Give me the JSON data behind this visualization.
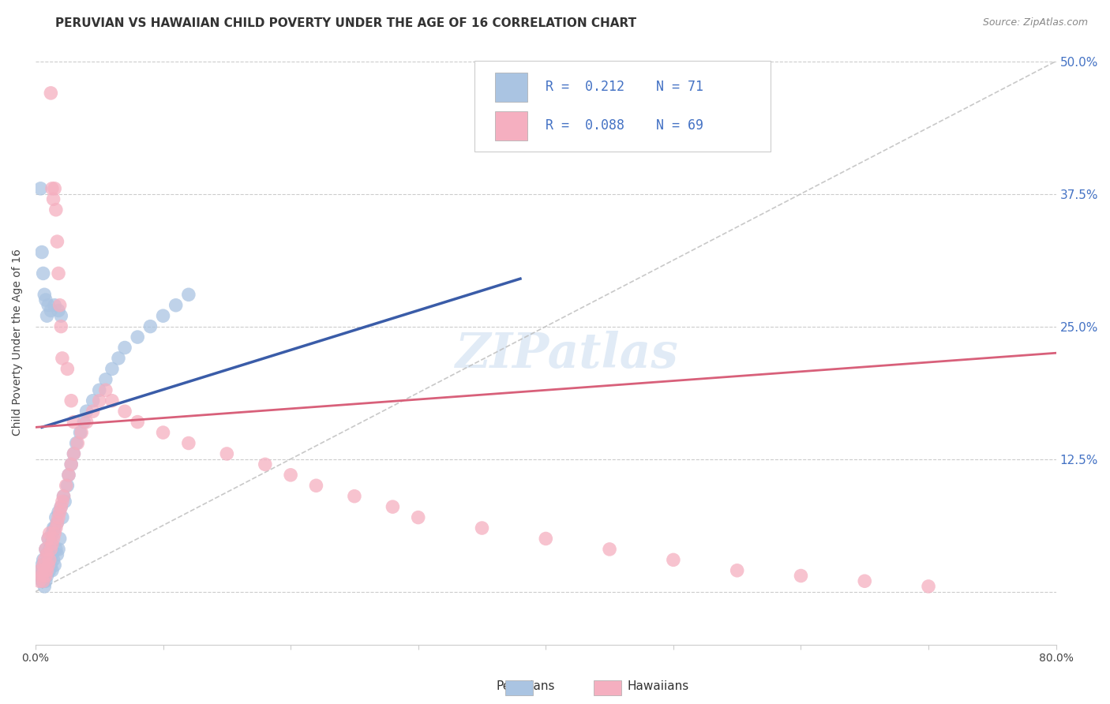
{
  "title": "PERUVIAN VS HAWAIIAN CHILD POVERTY UNDER THE AGE OF 16 CORRELATION CHART",
  "source": "Source: ZipAtlas.com",
  "ylabel": "Child Poverty Under the Age of 16",
  "xlim": [
    0.0,
    0.8
  ],
  "ylim": [
    -0.05,
    0.52
  ],
  "plot_ylim": [
    -0.05,
    0.52
  ],
  "xtick_positions": [
    0.0,
    0.1,
    0.2,
    0.3,
    0.4,
    0.5,
    0.6,
    0.7,
    0.8
  ],
  "xtick_labels": [
    "0.0%",
    "",
    "",
    "",
    "",
    "",
    "",
    "",
    "80.0%"
  ],
  "ytick_positions": [
    0.0,
    0.125,
    0.25,
    0.375,
    0.5
  ],
  "ytick_labels": [
    "",
    "12.5%",
    "25.0%",
    "37.5%",
    "50.0%"
  ],
  "peruvian_color": "#aac4e2",
  "hawaiian_color": "#f5afc0",
  "peruvian_line_color": "#3a5ca8",
  "hawaiian_line_color": "#d8607a",
  "diagonal_color": "#bbbbbb",
  "R_peruvian": 0.212,
  "N_peruvian": 71,
  "R_hawaiian": 0.088,
  "N_hawaiian": 69,
  "legend_label_peruvian": "Peruvians",
  "legend_label_hawaiian": "Hawaiians",
  "watermark": "ZIPatlas",
  "title_fontsize": 11,
  "axis_label_fontsize": 10,
  "tick_fontsize": 10,
  "peru_blue_line": [
    [
      0.005,
      0.155
    ],
    [
      0.38,
      0.295
    ]
  ],
  "haw_pink_line": [
    [
      0.0,
      0.155
    ],
    [
      0.8,
      0.225
    ]
  ],
  "peru_x": [
    0.003,
    0.004,
    0.005,
    0.005,
    0.006,
    0.006,
    0.006,
    0.007,
    0.007,
    0.007,
    0.008,
    0.008,
    0.008,
    0.009,
    0.009,
    0.009,
    0.01,
    0.01,
    0.01,
    0.011,
    0.011,
    0.012,
    0.012,
    0.013,
    0.013,
    0.013,
    0.014,
    0.014,
    0.015,
    0.015,
    0.016,
    0.016,
    0.017,
    0.017,
    0.018,
    0.018,
    0.019,
    0.02,
    0.021,
    0.022,
    0.023,
    0.025,
    0.026,
    0.028,
    0.03,
    0.032,
    0.035,
    0.038,
    0.04,
    0.045,
    0.05,
    0.055,
    0.06,
    0.065,
    0.07,
    0.08,
    0.09,
    0.1,
    0.11,
    0.12,
    0.004,
    0.005,
    0.006,
    0.007,
    0.008,
    0.009,
    0.01,
    0.012,
    0.015,
    0.018,
    0.02
  ],
  "peru_y": [
    0.015,
    0.02,
    0.01,
    0.025,
    0.01,
    0.02,
    0.03,
    0.005,
    0.015,
    0.025,
    0.01,
    0.02,
    0.04,
    0.015,
    0.025,
    0.035,
    0.02,
    0.03,
    0.05,
    0.02,
    0.04,
    0.025,
    0.045,
    0.02,
    0.035,
    0.055,
    0.03,
    0.06,
    0.025,
    0.06,
    0.04,
    0.07,
    0.035,
    0.065,
    0.04,
    0.075,
    0.05,
    0.08,
    0.07,
    0.09,
    0.085,
    0.1,
    0.11,
    0.12,
    0.13,
    0.14,
    0.15,
    0.16,
    0.17,
    0.18,
    0.19,
    0.2,
    0.21,
    0.22,
    0.23,
    0.24,
    0.25,
    0.26,
    0.27,
    0.28,
    0.38,
    0.32,
    0.3,
    0.28,
    0.275,
    0.26,
    0.27,
    0.265,
    0.27,
    0.265,
    0.26
  ],
  "haw_x": [
    0.003,
    0.004,
    0.005,
    0.006,
    0.006,
    0.007,
    0.007,
    0.008,
    0.008,
    0.009,
    0.009,
    0.01,
    0.01,
    0.011,
    0.011,
    0.012,
    0.013,
    0.014,
    0.015,
    0.016,
    0.017,
    0.018,
    0.019,
    0.02,
    0.021,
    0.022,
    0.024,
    0.026,
    0.028,
    0.03,
    0.033,
    0.036,
    0.04,
    0.045,
    0.05,
    0.055,
    0.06,
    0.07,
    0.08,
    0.1,
    0.12,
    0.15,
    0.18,
    0.2,
    0.22,
    0.25,
    0.28,
    0.3,
    0.35,
    0.4,
    0.45,
    0.5,
    0.55,
    0.6,
    0.65,
    0.7,
    0.012,
    0.013,
    0.014,
    0.015,
    0.016,
    0.017,
    0.018,
    0.019,
    0.02,
    0.021,
    0.025,
    0.028,
    0.03
  ],
  "haw_y": [
    0.01,
    0.02,
    0.015,
    0.01,
    0.025,
    0.02,
    0.03,
    0.015,
    0.04,
    0.02,
    0.035,
    0.025,
    0.05,
    0.03,
    0.055,
    0.04,
    0.045,
    0.05,
    0.055,
    0.06,
    0.065,
    0.07,
    0.075,
    0.08,
    0.085,
    0.09,
    0.1,
    0.11,
    0.12,
    0.13,
    0.14,
    0.15,
    0.16,
    0.17,
    0.18,
    0.19,
    0.18,
    0.17,
    0.16,
    0.15,
    0.14,
    0.13,
    0.12,
    0.11,
    0.1,
    0.09,
    0.08,
    0.07,
    0.06,
    0.05,
    0.04,
    0.03,
    0.02,
    0.015,
    0.01,
    0.005,
    0.47,
    0.38,
    0.37,
    0.38,
    0.36,
    0.33,
    0.3,
    0.27,
    0.25,
    0.22,
    0.21,
    0.18,
    0.16
  ]
}
